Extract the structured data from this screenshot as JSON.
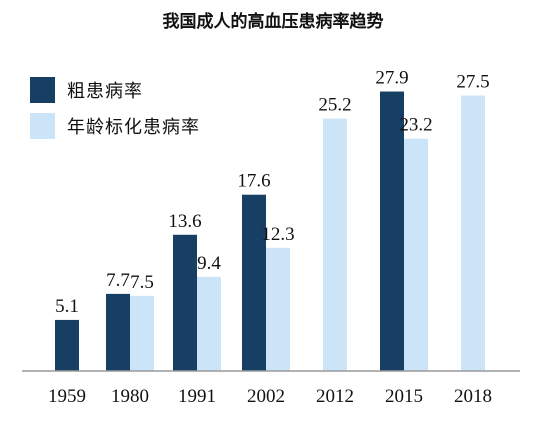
{
  "chart_data": {
    "type": "bar",
    "title": "我国成人的高血压患病率趋势",
    "categories": [
      "1959",
      "1980",
      "1991",
      "2002",
      "2012",
      "2015",
      "2018"
    ],
    "series": [
      {
        "name": "粗患病率",
        "color": "#173f63",
        "values": [
          5.1,
          7.7,
          13.6,
          17.6,
          null,
          27.9,
          null
        ]
      },
      {
        "name": "年龄标化患病率",
        "color": "#cce4f7",
        "values": [
          null,
          7.5,
          9.4,
          12.3,
          25.2,
          23.2,
          27.5
        ]
      }
    ],
    "ylim": [
      0,
      30
    ],
    "grid": false,
    "legend_position": "top-left",
    "xlabel": "",
    "ylabel": ""
  }
}
